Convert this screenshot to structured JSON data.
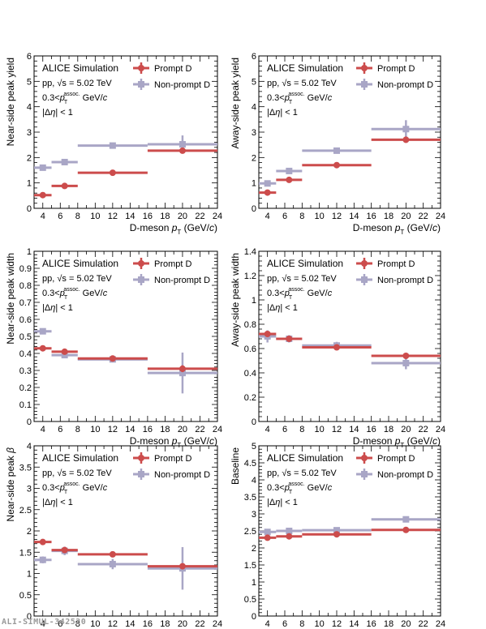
{
  "watermark": "ALI-SIMUL-342520",
  "legend_series": [
    {
      "name": "Prompt D",
      "color": "#cc4c4c",
      "marker": "circle"
    },
    {
      "name": "Non-prompt D",
      "color": "#a9a6c6",
      "marker": "square"
    }
  ],
  "annotation": {
    "line1": "ALICE Simulation",
    "line2a": "pp, ",
    "sqrt": "√",
    "line2b": "s = 5.02 TeV",
    "line3a": "0.3<",
    "p": "p",
    "sub_T": "T",
    "sup_assoc": "assoc.",
    "line3b": " GeV/",
    "c": "c",
    "line4a": "|Δ",
    "eta": "η",
    "line4b": "| < 1"
  },
  "xaxis": {
    "label_a": "D-meson ",
    "label_p": "p",
    "label_T": "T",
    "label_b": " (GeV/",
    "label_c": "c",
    "label_d": ")",
    "ticks": [
      4,
      6,
      8,
      10,
      12,
      14,
      16,
      18,
      20,
      22,
      24
    ],
    "range": [
      3,
      24
    ]
  },
  "chart_data": [
    {
      "type": "scatter",
      "ylabel": "Near-side peak yield",
      "ylim": [
        0,
        6
      ],
      "yticks": [
        0,
        1,
        2,
        3,
        4,
        5,
        6
      ],
      "yfmt": "int",
      "legend_position": "top-right",
      "series": [
        {
          "name": "Prompt D",
          "points": [
            {
              "x": 4,
              "xlo": 3,
              "xhi": 5,
              "y": 0.52,
              "err": 0.03
            },
            {
              "x": 6.5,
              "xlo": 5,
              "xhi": 8,
              "y": 0.88,
              "err": 0.03
            },
            {
              "x": 12,
              "xlo": 8,
              "xhi": 16,
              "y": 1.4,
              "err": 0.04
            },
            {
              "x": 20,
              "xlo": 16,
              "xhi": 24,
              "y": 2.27,
              "err": 0.1
            }
          ]
        },
        {
          "name": "Non-prompt D",
          "points": [
            {
              "x": 4,
              "xlo": 3,
              "xhi": 5,
              "y": 1.6,
              "err": 0.05
            },
            {
              "x": 6.5,
              "xlo": 5,
              "xhi": 8,
              "y": 1.82,
              "err": 0.05
            },
            {
              "x": 12,
              "xlo": 8,
              "xhi": 16,
              "y": 2.47,
              "err": 0.07
            },
            {
              "x": 20,
              "xlo": 16,
              "xhi": 24,
              "y": 2.52,
              "err": 0.35
            }
          ]
        }
      ]
    },
    {
      "type": "scatter",
      "ylabel": "Away-side peak yield",
      "ylim": [
        0,
        6
      ],
      "yticks": [
        0,
        1,
        2,
        3,
        4,
        5,
        6
      ],
      "yfmt": "int",
      "legend_position": "top-right",
      "series": [
        {
          "name": "Prompt D",
          "points": [
            {
              "x": 4,
              "xlo": 3,
              "xhi": 5,
              "y": 0.62,
              "err": 0.03
            },
            {
              "x": 6.5,
              "xlo": 5,
              "xhi": 8,
              "y": 1.12,
              "err": 0.04
            },
            {
              "x": 12,
              "xlo": 8,
              "xhi": 16,
              "y": 1.7,
              "err": 0.05
            },
            {
              "x": 20,
              "xlo": 16,
              "xhi": 24,
              "y": 2.7,
              "err": 0.12
            }
          ]
        },
        {
          "name": "Non-prompt D",
          "points": [
            {
              "x": 4,
              "xlo": 3,
              "xhi": 5,
              "y": 0.98,
              "err": 0.05
            },
            {
              "x": 6.5,
              "xlo": 5,
              "xhi": 8,
              "y": 1.47,
              "err": 0.05
            },
            {
              "x": 12,
              "xlo": 8,
              "xhi": 16,
              "y": 2.27,
              "err": 0.1
            },
            {
              "x": 20,
              "xlo": 16,
              "xhi": 24,
              "y": 3.12,
              "err": 0.35
            }
          ]
        }
      ]
    },
    {
      "type": "scatter",
      "ylabel": "Near-side peak width",
      "ylim": [
        0,
        1
      ],
      "yticks": [
        0,
        0.1,
        0.2,
        0.3,
        0.4,
        0.5,
        0.6,
        0.7,
        0.8,
        0.9,
        1
      ],
      "yfmt": "dec1",
      "legend_position": "top-right",
      "series": [
        {
          "name": "Prompt D",
          "points": [
            {
              "x": 4,
              "xlo": 3,
              "xhi": 5,
              "y": 0.43,
              "err": 0.01
            },
            {
              "x": 6.5,
              "xlo": 5,
              "xhi": 8,
              "y": 0.41,
              "err": 0.01
            },
            {
              "x": 12,
              "xlo": 8,
              "xhi": 16,
              "y": 0.37,
              "err": 0.01
            },
            {
              "x": 20,
              "xlo": 16,
              "xhi": 24,
              "y": 0.31,
              "err": 0.02
            }
          ]
        },
        {
          "name": "Non-prompt D",
          "points": [
            {
              "x": 4,
              "xlo": 3,
              "xhi": 5,
              "y": 0.53,
              "err": 0.015
            },
            {
              "x": 6.5,
              "xlo": 5,
              "xhi": 8,
              "y": 0.39,
              "err": 0.01
            },
            {
              "x": 12,
              "xlo": 8,
              "xhi": 16,
              "y": 0.365,
              "err": 0.015
            },
            {
              "x": 20,
              "xlo": 16,
              "xhi": 24,
              "y": 0.285,
              "err": 0.12
            }
          ]
        }
      ]
    },
    {
      "type": "scatter",
      "ylabel": "Away-side peak width",
      "ylim": [
        0,
        1.4
      ],
      "yticks": [
        0,
        0.2,
        0.4,
        0.6,
        0.8,
        1,
        1.2,
        1.4
      ],
      "yfmt": "dec1",
      "legend_position": "top-right",
      "series": [
        {
          "name": "Prompt D",
          "points": [
            {
              "x": 4,
              "xlo": 3,
              "xhi": 5,
              "y": 0.72,
              "err": 0.02
            },
            {
              "x": 6.5,
              "xlo": 5,
              "xhi": 8,
              "y": 0.68,
              "err": 0.02
            },
            {
              "x": 12,
              "xlo": 8,
              "xhi": 16,
              "y": 0.61,
              "err": 0.02
            },
            {
              "x": 20,
              "xlo": 16,
              "xhi": 24,
              "y": 0.54,
              "err": 0.02
            }
          ]
        },
        {
          "name": "Non-prompt D",
          "points": [
            {
              "x": 4,
              "xlo": 3,
              "xhi": 5,
              "y": 0.7,
              "err": 0.05
            },
            {
              "x": 6.5,
              "xlo": 5,
              "xhi": 8,
              "y": 0.68,
              "err": 0.03
            },
            {
              "x": 12,
              "xlo": 8,
              "xhi": 16,
              "y": 0.625,
              "err": 0.03
            },
            {
              "x": 20,
              "xlo": 16,
              "xhi": 24,
              "y": 0.48,
              "err": 0.05
            }
          ]
        }
      ]
    },
    {
      "type": "scatter",
      "ylabel": "Near-side peak β",
      "ylim": [
        0,
        4
      ],
      "yticks": [
        0,
        0.5,
        1,
        1.5,
        2,
        2.5,
        3,
        3.5,
        4
      ],
      "yfmt": "half",
      "legend_position": "top-right",
      "series": [
        {
          "name": "Prompt D",
          "points": [
            {
              "x": 4,
              "xlo": 3,
              "xhi": 5,
              "y": 1.74,
              "err": 0.05
            },
            {
              "x": 6.5,
              "xlo": 5,
              "xhi": 8,
              "y": 1.55,
              "err": 0.05
            },
            {
              "x": 12,
              "xlo": 8,
              "xhi": 16,
              "y": 1.45,
              "err": 0.05
            },
            {
              "x": 20,
              "xlo": 16,
              "xhi": 24,
              "y": 1.17,
              "err": 0.06
            }
          ]
        },
        {
          "name": "Non-prompt D",
          "points": [
            {
              "x": 4,
              "xlo": 3,
              "xhi": 5,
              "y": 1.32,
              "err": 0.08
            },
            {
              "x": 6.5,
              "xlo": 5,
              "xhi": 8,
              "y": 1.53,
              "err": 0.1
            },
            {
              "x": 12,
              "xlo": 8,
              "xhi": 16,
              "y": 1.22,
              "err": 0.12
            },
            {
              "x": 20,
              "xlo": 16,
              "xhi": 24,
              "y": 1.12,
              "err": 0.5
            }
          ]
        }
      ]
    },
    {
      "type": "scatter",
      "ylabel": "Baseline",
      "ylim": [
        0,
        5
      ],
      "yticks": [
        0,
        0.5,
        1,
        1.5,
        2,
        2.5,
        3,
        3.5,
        4,
        4.5,
        5
      ],
      "yfmt": "half",
      "legend_position": "top-right",
      "series": [
        {
          "name": "Prompt D",
          "points": [
            {
              "x": 4,
              "xlo": 3,
              "xhi": 5,
              "y": 2.3,
              "err": 0.02
            },
            {
              "x": 6.5,
              "xlo": 5,
              "xhi": 8,
              "y": 2.34,
              "err": 0.02
            },
            {
              "x": 12,
              "xlo": 8,
              "xhi": 16,
              "y": 2.4,
              "err": 0.02
            },
            {
              "x": 20,
              "xlo": 16,
              "xhi": 24,
              "y": 2.53,
              "err": 0.02
            }
          ]
        },
        {
          "name": "Non-prompt D",
          "points": [
            {
              "x": 4,
              "xlo": 3,
              "xhi": 5,
              "y": 2.47,
              "err": 0.05
            },
            {
              "x": 6.5,
              "xlo": 5,
              "xhi": 8,
              "y": 2.5,
              "err": 0.04
            },
            {
              "x": 12,
              "xlo": 8,
              "xhi": 16,
              "y": 2.52,
              "err": 0.04
            },
            {
              "x": 20,
              "xlo": 16,
              "xhi": 24,
              "y": 2.84,
              "err": 0.05
            }
          ]
        }
      ]
    }
  ]
}
